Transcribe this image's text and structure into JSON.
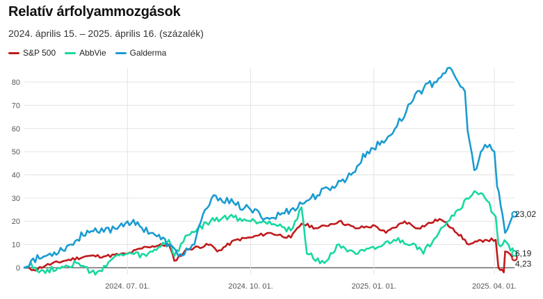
{
  "chart_data": {
    "type": "line",
    "title": "Relatív árfolyammozgások",
    "subtitle": "2024. április 15. – 2025. április 16. (százalék)",
    "xlabel": "",
    "ylabel": "",
    "ylim": [
      -3,
      86
    ],
    "yticks": [
      0,
      10,
      20,
      30,
      40,
      50,
      60,
      70,
      80
    ],
    "xlim": [
      "2024-04-15",
      "2025-04-16"
    ],
    "xticks": [
      {
        "date": "2024-07-01",
        "label": "2024. 07. 01."
      },
      {
        "date": "2024-10-01",
        "label": "2024. 10. 01."
      },
      {
        "date": "2025-01-01",
        "label": "2025. 01. 01."
      },
      {
        "date": "2025-04-01",
        "label": "2025. 04. 01."
      }
    ],
    "grid": true,
    "legend_position": "top-left",
    "series": [
      {
        "name": "S&P 500",
        "color": "#c0191b",
        "end_label": "4,23",
        "points": [
          [
            "2024-04-15",
            0
          ],
          [
            "2024-04-22",
            -1
          ],
          [
            "2024-05-01",
            1
          ],
          [
            "2024-05-15",
            3
          ],
          [
            "2024-06-01",
            5
          ],
          [
            "2024-06-15",
            5
          ],
          [
            "2024-07-01",
            6
          ],
          [
            "2024-07-15",
            9
          ],
          [
            "2024-08-01",
            10
          ],
          [
            "2024-08-05",
            3
          ],
          [
            "2024-08-15",
            8
          ],
          [
            "2024-09-01",
            10
          ],
          [
            "2024-09-06",
            7
          ],
          [
            "2024-09-20",
            12
          ],
          [
            "2024-10-01",
            13
          ],
          [
            "2024-10-15",
            15
          ],
          [
            "2024-10-31",
            13
          ],
          [
            "2024-11-08",
            19
          ],
          [
            "2024-11-20",
            17
          ],
          [
            "2024-12-06",
            20
          ],
          [
            "2024-12-18",
            17
          ],
          [
            "2025-01-02",
            18
          ],
          [
            "2025-01-10",
            15
          ],
          [
            "2025-01-24",
            20
          ],
          [
            "2025-02-03",
            17
          ],
          [
            "2025-02-19",
            21
          ],
          [
            "2025-03-01",
            17
          ],
          [
            "2025-03-13",
            10
          ],
          [
            "2025-03-25",
            12
          ],
          [
            "2025-04-02",
            12
          ],
          [
            "2025-04-04",
            0
          ],
          [
            "2025-04-08",
            -2
          ],
          [
            "2025-04-09",
            7
          ],
          [
            "2025-04-16",
            4.23
          ]
        ]
      },
      {
        "name": "AbbVie",
        "color": "#17d8a0",
        "end_label": "6,19",
        "points": [
          [
            "2024-04-15",
            0
          ],
          [
            "2024-04-20",
            2
          ],
          [
            "2024-04-26",
            -2
          ],
          [
            "2024-05-10",
            0
          ],
          [
            "2024-05-24",
            2
          ],
          [
            "2024-06-07",
            -3
          ],
          [
            "2024-06-20",
            4
          ],
          [
            "2024-07-01",
            6
          ],
          [
            "2024-07-15",
            5
          ],
          [
            "2024-08-01",
            12
          ],
          [
            "2024-08-05",
            5
          ],
          [
            "2024-08-15",
            14
          ],
          [
            "2024-09-01",
            20
          ],
          [
            "2024-09-15",
            22
          ],
          [
            "2024-10-01",
            20
          ],
          [
            "2024-10-15",
            20
          ],
          [
            "2024-10-31",
            16
          ],
          [
            "2024-11-08",
            26
          ],
          [
            "2024-11-12",
            6
          ],
          [
            "2024-11-25",
            2
          ],
          [
            "2024-12-06",
            10
          ],
          [
            "2024-12-20",
            6
          ],
          [
            "2025-01-02",
            8
          ],
          [
            "2025-01-16",
            12
          ],
          [
            "2025-02-01",
            10
          ],
          [
            "2025-02-07",
            6
          ],
          [
            "2025-02-20",
            17
          ],
          [
            "2025-03-05",
            25
          ],
          [
            "2025-03-17",
            33
          ],
          [
            "2025-03-25",
            30
          ],
          [
            "2025-04-02",
            22
          ],
          [
            "2025-04-04",
            10
          ],
          [
            "2025-04-10",
            11
          ],
          [
            "2025-04-16",
            6.19
          ]
        ]
      },
      {
        "name": "Galderma",
        "color": "#1a9bd0",
        "end_label": "23,02",
        "points": [
          [
            "2024-04-15",
            0
          ],
          [
            "2024-04-20",
            3
          ],
          [
            "2024-05-01",
            5
          ],
          [
            "2024-05-20",
            10
          ],
          [
            "2024-06-01",
            16
          ],
          [
            "2024-06-10",
            15
          ],
          [
            "2024-06-25",
            18
          ],
          [
            "2024-07-01",
            20
          ],
          [
            "2024-07-10",
            18
          ],
          [
            "2024-07-20",
            15
          ],
          [
            "2024-08-01",
            10
          ],
          [
            "2024-08-08",
            5
          ],
          [
            "2024-08-20",
            10
          ],
          [
            "2024-08-28",
            25
          ],
          [
            "2024-09-05",
            31
          ],
          [
            "2024-09-20",
            27
          ],
          [
            "2024-10-01",
            25
          ],
          [
            "2024-10-15",
            21
          ],
          [
            "2024-10-31",
            25
          ],
          [
            "2024-11-15",
            30
          ],
          [
            "2024-12-01",
            35
          ],
          [
            "2024-12-15",
            40
          ],
          [
            "2024-12-27",
            50
          ],
          [
            "2025-01-10",
            55
          ],
          [
            "2025-01-25",
            67
          ],
          [
            "2025-02-01",
            75
          ],
          [
            "2025-02-15",
            80
          ],
          [
            "2025-02-25",
            86
          ],
          [
            "2025-03-05",
            80
          ],
          [
            "2025-03-10",
            76
          ],
          [
            "2025-03-12",
            59
          ],
          [
            "2025-03-17",
            42
          ],
          [
            "2025-03-25",
            53
          ],
          [
            "2025-04-01",
            50
          ],
          [
            "2025-04-03",
            35
          ],
          [
            "2025-04-07",
            23
          ],
          [
            "2025-04-09",
            15
          ],
          [
            "2025-04-16",
            23.02
          ]
        ]
      }
    ]
  }
}
